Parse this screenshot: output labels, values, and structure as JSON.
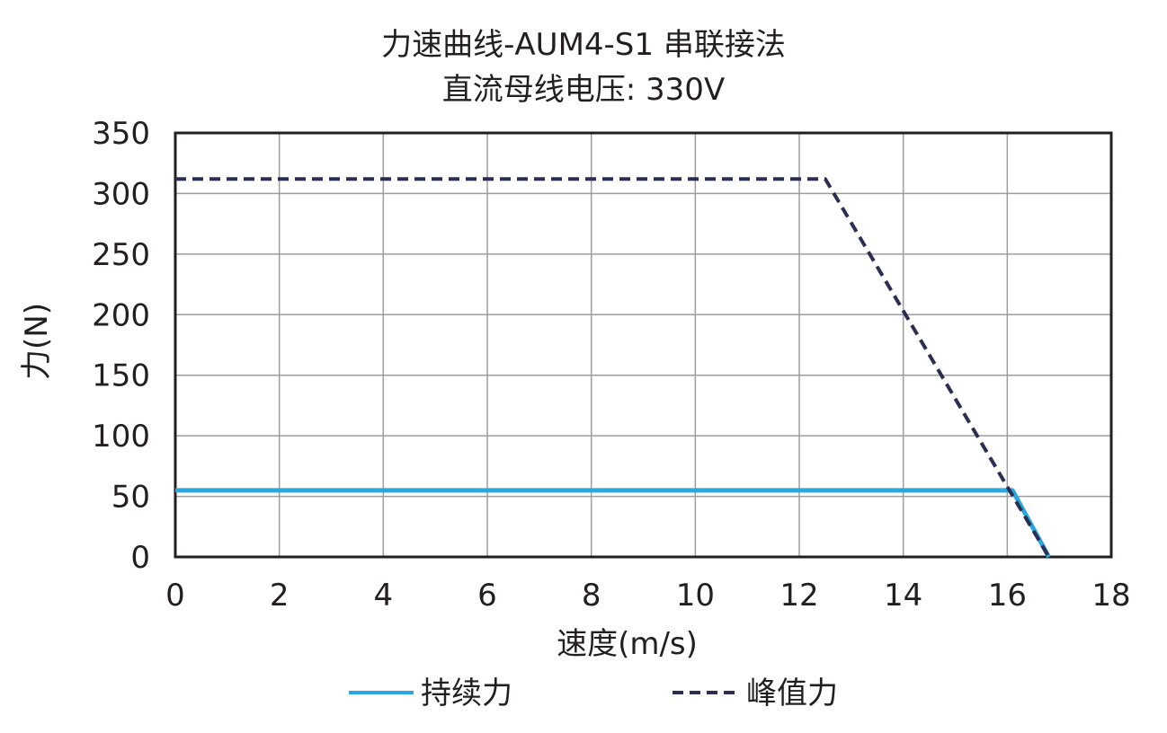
{
  "chart_data": {
    "type": "line",
    "title": "力速曲线-AUM4-S1 串联接法",
    "subtitle": "直流母线电压: 330V",
    "xlabel": "速度(m/s)",
    "ylabel": "力(N)",
    "xlim": [
      0,
      18
    ],
    "ylim": [
      0,
      350
    ],
    "xticks": [
      0,
      2,
      4,
      6,
      8,
      10,
      12,
      14,
      16,
      18
    ],
    "yticks": [
      0,
      50,
      100,
      150,
      200,
      250,
      300,
      350
    ],
    "grid": true,
    "legend_position": "bottom",
    "series": [
      {
        "name": "持续力",
        "style": "solid",
        "color": "#29a8e0",
        "x": [
          0,
          16.1,
          16.8
        ],
        "y": [
          55,
          55,
          0
        ]
      },
      {
        "name": "峰值力",
        "style": "dashed",
        "color": "#2b2d52",
        "x": [
          0,
          12.5,
          16.8
        ],
        "y": [
          312,
          312,
          0
        ]
      }
    ]
  },
  "title_line1": "力速曲线-AUM4-S1 串联接法",
  "title_line2": "直流母线电压: 330V",
  "xlabel": "速度(m/s)",
  "ylabel": "力(N)",
  "legend": {
    "continuous": "持续力",
    "peak": "峰值力"
  }
}
